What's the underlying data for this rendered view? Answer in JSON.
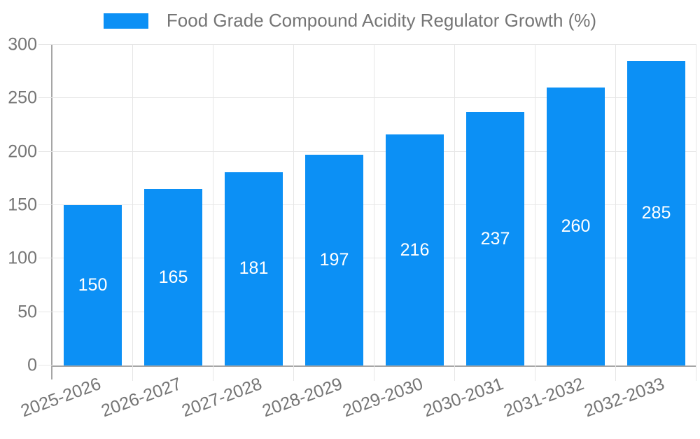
{
  "legend": {
    "swatch_color": "#0c90f5"
  },
  "colors": {
    "bar": "#0c90f5",
    "axis_text": "#757575",
    "gridline": "#e6e6e6",
    "axis_line": "#a6a6a6",
    "value_label": "#ffffff",
    "background": "#ffffff"
  },
  "chart_data": {
    "type": "bar",
    "title": "Food Grade Compound Acidity Regulator Growth (%)",
    "categories": [
      "2025-2026",
      "2026-2027",
      "2027-2028",
      "2028-2029",
      "2029-2030",
      "2030-2031",
      "2031-2032",
      "2032-2033"
    ],
    "values": [
      150,
      165,
      181,
      197,
      216,
      237,
      260,
      285
    ],
    "xlabel": "",
    "ylabel": "",
    "ylim": [
      0,
      300
    ],
    "yticks": [
      0,
      50,
      100,
      150,
      200,
      250,
      300
    ],
    "grid": true,
    "legend_position": "top",
    "value_labels": "inside-center",
    "x_tick_rotation_deg": -20
  }
}
